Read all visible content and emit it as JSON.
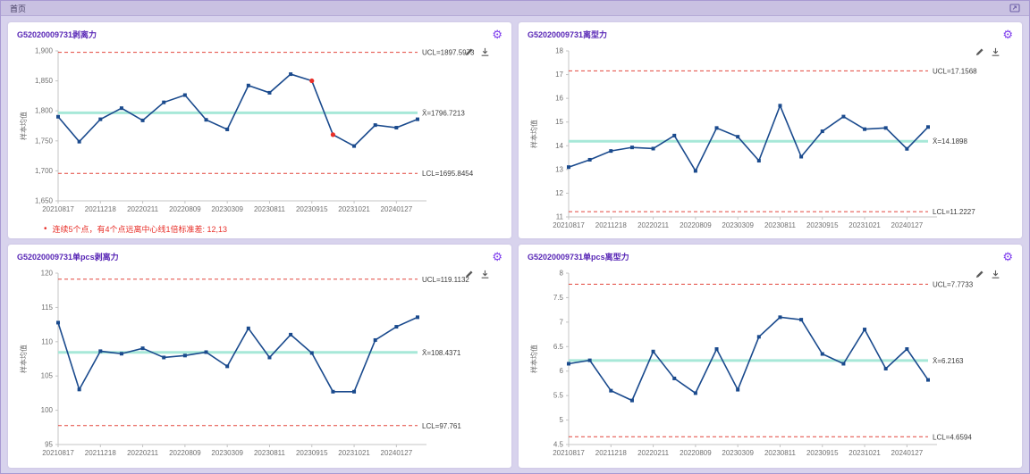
{
  "header": {
    "title": "首页"
  },
  "icons": {
    "gear": "⚙",
    "bullet": "•"
  },
  "theme": {
    "series_color": "#1a4a8d",
    "flag_color": "#e8302a",
    "limit_color": "#e2453c",
    "center_color": "#a7e8d8",
    "axis_line": "#c4c4c4",
    "text_color": "#707070",
    "label_color": "#3c3c3c"
  },
  "charts": [
    {
      "type": "line",
      "title": "G52020009731剥离力",
      "y_axis_title": "样本均值",
      "ylim": [
        1650,
        1900
      ],
      "yticks": [
        {
          "v": 1650,
          "t": "1,650"
        },
        {
          "v": 1700,
          "t": "1,700"
        },
        {
          "v": 1750,
          "t": "1,750"
        },
        {
          "v": 1800,
          "t": "1,800"
        },
        {
          "v": 1850,
          "t": "1,850"
        },
        {
          "v": 1900,
          "t": "1,900"
        }
      ],
      "x_labels": [
        "20210817",
        "20211218",
        "20220211",
        "20220809",
        "20230309",
        "20230811",
        "20230915",
        "20231021",
        "20240127"
      ],
      "values": [
        1790.2,
        1748.7,
        1786.0,
        1804.5,
        1784.1,
        1814.2,
        1826.3,
        1785.1,
        1769.1,
        1842.3,
        1830.2,
        1861.2,
        1850.1,
        1760.3,
        1741.4,
        1776.3,
        1772.0,
        1786.0
      ],
      "flagged_indexes": [
        12,
        13
      ],
      "ucl": {
        "value": 1897.5973,
        "label": "UCL=1897.5973"
      },
      "center": {
        "value": 1796.7213,
        "label": "X̄=1796.7213"
      },
      "lcl": {
        "value": 1695.8454,
        "label": "LCL=1695.8454"
      },
      "warning_bullet": "•",
      "warning": "连续5个点，有4个点远离中心线1倍标准差: 12,13"
    },
    {
      "type": "line",
      "title": "G52020009731离型力",
      "y_axis_title": "样本均值",
      "ylim": [
        11,
        18
      ],
      "yticks": [
        {
          "v": 11,
          "t": "11"
        },
        {
          "v": 12,
          "t": "12"
        },
        {
          "v": 13,
          "t": "13"
        },
        {
          "v": 14,
          "t": "14"
        },
        {
          "v": 15,
          "t": "15"
        },
        {
          "v": 16,
          "t": "16"
        },
        {
          "v": 17,
          "t": "17"
        },
        {
          "v": 18,
          "t": "18"
        }
      ],
      "x_labels": [
        "20210817",
        "20211218",
        "20220211",
        "20220809",
        "20230309",
        "20230811",
        "20230915",
        "20231021",
        "20240127"
      ],
      "values": [
        13.1,
        13.41,
        13.78,
        13.93,
        13.88,
        14.43,
        12.94,
        14.75,
        14.38,
        13.37,
        15.69,
        13.54,
        14.61,
        15.23,
        14.7,
        14.75,
        13.87,
        14.79
      ],
      "flagged_indexes": [],
      "ucl": {
        "value": 17.1568,
        "label": "UCL=17.1568"
      },
      "center": {
        "value": 14.1898,
        "label": "X̄=14.1898"
      },
      "lcl": {
        "value": 11.2227,
        "label": "LCL=11.2227"
      }
    },
    {
      "type": "line",
      "title": "G52020009731单pcs剥离力",
      "y_axis_title": "样本均值",
      "ylim": [
        95,
        120
      ],
      "yticks": [
        {
          "v": 95,
          "t": "95"
        },
        {
          "v": 100,
          "t": "100"
        },
        {
          "v": 105,
          "t": "105"
        },
        {
          "v": 110,
          "t": "110"
        },
        {
          "v": 115,
          "t": "115"
        },
        {
          "v": 120,
          "t": "120"
        }
      ],
      "x_labels": [
        "20210817",
        "20211218",
        "20220211",
        "20220809",
        "20230309",
        "20230811",
        "20230915",
        "20231021",
        "20240127"
      ],
      "values": [
        112.78,
        103.03,
        108.62,
        108.25,
        109.04,
        107.7,
        107.98,
        108.48,
        106.41,
        111.95,
        107.7,
        111.03,
        108.35,
        102.71,
        102.71,
        110.24,
        112.18,
        113.57
      ],
      "flagged_indexes": [],
      "ucl": {
        "value": 119.1132,
        "label": "UCL=119.1132"
      },
      "center": {
        "value": 108.4371,
        "label": "X̄=108.4371"
      },
      "lcl": {
        "value": 97.761,
        "label": "LCL=97.761"
      }
    },
    {
      "type": "line",
      "title": "G52020009731单pcs离型力",
      "y_axis_title": "样本均值",
      "ylim": [
        4.5,
        8
      ],
      "yticks": [
        {
          "v": 4.5,
          "t": "4.5"
        },
        {
          "v": 5,
          "t": "5"
        },
        {
          "v": 5.5,
          "t": "5.5"
        },
        {
          "v": 6,
          "t": "6"
        },
        {
          "v": 6.5,
          "t": "6.5"
        },
        {
          "v": 7,
          "t": "7"
        },
        {
          "v": 7.5,
          "t": "7.5"
        },
        {
          "v": 8,
          "t": "8"
        }
      ],
      "x_labels": [
        "20210817",
        "20211218",
        "20220211",
        "20220809",
        "20230309",
        "20230811",
        "20230915",
        "20231021",
        "20240127"
      ],
      "values": [
        6.15,
        6.22,
        5.6,
        5.4,
        6.4,
        5.85,
        5.55,
        6.45,
        5.62,
        6.7,
        7.1,
        7.05,
        6.35,
        6.15,
        6.85,
        6.05,
        6.45,
        5.82
      ],
      "flagged_indexes": [],
      "ucl": {
        "value": 7.7733,
        "label": "UCL=7.7733"
      },
      "center": {
        "value": 6.2163,
        "label": "X̄=6.2163"
      },
      "lcl": {
        "value": 4.6594,
        "label": "LCL=4.6594"
      }
    }
  ]
}
